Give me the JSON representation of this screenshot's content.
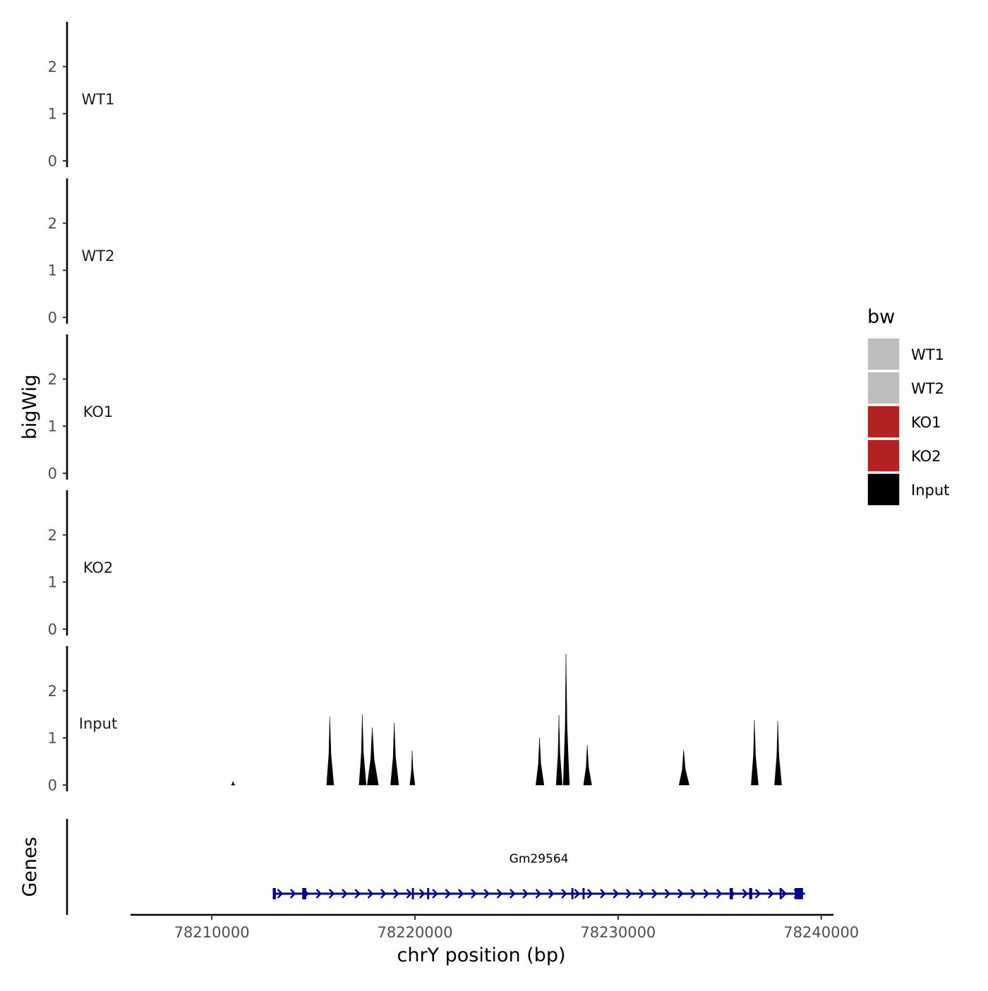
{
  "chart_data": {
    "type": "area",
    "ylabel": "bigWig",
    "genes_label": "Genes",
    "xlabel": "chrY position (bp)",
    "xlim": [
      78206000,
      78240600
    ],
    "ylim": [
      0,
      2.95
    ],
    "y_ticks": [
      0,
      1,
      2
    ],
    "x_ticks": [
      78210000,
      78220000,
      78230000,
      78240000
    ],
    "x_tick_labels": [
      "78210000",
      "78220000",
      "78230000",
      "78240000"
    ],
    "tracks": [
      {
        "name": "WT1",
        "color": "#bebebe",
        "peaks": []
      },
      {
        "name": "WT2",
        "color": "#bebebe",
        "peaks": []
      },
      {
        "name": "KO1",
        "color": "#b22222",
        "peaks": []
      },
      {
        "name": "KO2",
        "color": "#b22222",
        "peaks": []
      },
      {
        "name": "Input",
        "color": "#000000",
        "peaks": [
          {
            "start": 78210950,
            "end": 78211150,
            "height": 0.08
          },
          {
            "start": 78215650,
            "end": 78216000,
            "height": 1.45
          },
          {
            "start": 78217250,
            "end": 78217600,
            "height": 1.5
          },
          {
            "start": 78217650,
            "end": 78218200,
            "height": 1.22
          },
          {
            "start": 78218800,
            "end": 78219200,
            "height": 1.32
          },
          {
            "start": 78219750,
            "end": 78220000,
            "height": 0.73
          },
          {
            "start": 78225950,
            "end": 78226350,
            "height": 1.0
          },
          {
            "start": 78226950,
            "end": 78227250,
            "height": 1.48
          },
          {
            "start": 78227300,
            "end": 78227600,
            "height": 2.78
          },
          {
            "start": 78228300,
            "end": 78228700,
            "height": 0.85
          },
          {
            "start": 78233000,
            "end": 78233500,
            "height": 0.75
          },
          {
            "start": 78236550,
            "end": 78236900,
            "height": 1.38
          },
          {
            "start": 78237700,
            "end": 78238050,
            "height": 1.36
          }
        ]
      }
    ],
    "legend": {
      "title": "bw",
      "entries": [
        {
          "label": "WT1",
          "color": "#bebebe"
        },
        {
          "label": "WT2",
          "color": "#bebebe"
        },
        {
          "label": "KO1",
          "color": "#b22222"
        },
        {
          "label": "KO2",
          "color": "#b22222"
        },
        {
          "label": "Input",
          "color": "#000000"
        }
      ]
    },
    "gene": {
      "name": "Gm29564",
      "start": 78213000,
      "end": 78239200,
      "strand": "+",
      "color": "#00008b",
      "exons": [
        {
          "start": 78213000,
          "end": 78213150
        },
        {
          "start": 78214450,
          "end": 78214650
        },
        {
          "start": 78219850,
          "end": 78219950
        },
        {
          "start": 78220600,
          "end": 78220700
        },
        {
          "start": 78227700,
          "end": 78227800
        },
        {
          "start": 78228250,
          "end": 78228350
        },
        {
          "start": 78235500,
          "end": 78235650
        },
        {
          "start": 78236450,
          "end": 78236600
        },
        {
          "start": 78237950,
          "end": 78238050
        },
        {
          "start": 78238700,
          "end": 78239100
        }
      ]
    }
  }
}
